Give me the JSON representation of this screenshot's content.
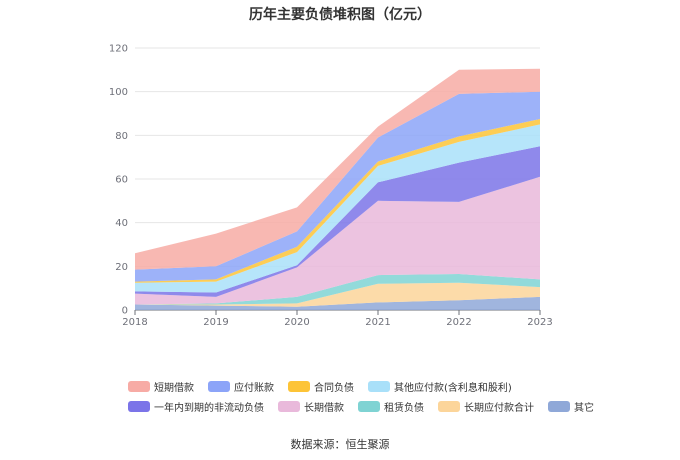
{
  "chart_data": {
    "type": "area",
    "stacked": true,
    "title": "历年主要负债堆积图（亿元）",
    "categories": [
      "2018",
      "2019",
      "2020",
      "2021",
      "2022",
      "2023"
    ],
    "ylim": [
      0,
      120
    ],
    "yticks": [
      0,
      20,
      40,
      60,
      80,
      100,
      120
    ],
    "grid": true,
    "legend_position": "bottom",
    "series": [
      {
        "name": "其它",
        "color": "#8fa8d8",
        "values": [
          2.5,
          2.0,
          1.5,
          3.5,
          4.5,
          6.0
        ]
      },
      {
        "name": "长期应付款合计",
        "color": "#fcd59a",
        "values": [
          0.0,
          0.5,
          1.5,
          8.5,
          8.0,
          4.5
        ]
      },
      {
        "name": "租赁负债",
        "color": "#7fd3d3",
        "values": [
          0.0,
          0.5,
          3.0,
          4.0,
          4.0,
          3.5
        ]
      },
      {
        "name": "长期借款",
        "color": "#e9b9db",
        "values": [
          5.0,
          3.0,
          13.5,
          34.0,
          33.0,
          47.0
        ]
      },
      {
        "name": "一年内到期的非流动负债",
        "color": "#7b74e8",
        "values": [
          1.0,
          2.0,
          1.0,
          8.5,
          18.0,
          14.0
        ]
      },
      {
        "name": "其他应付款(含利息和股利)",
        "color": "#a9e0f9",
        "values": [
          4.0,
          5.0,
          6.0,
          7.5,
          9.5,
          10.0
        ]
      },
      {
        "name": "合同负债",
        "color": "#fdc437",
        "values": [
          0.5,
          1.0,
          2.5,
          2.0,
          2.5,
          2.5
        ]
      },
      {
        "name": "应付账款",
        "color": "#8ca4f8",
        "values": [
          5.5,
          6.0,
          7.0,
          11.0,
          19.5,
          12.5
        ]
      },
      {
        "name": "短期借款",
        "color": "#f7aba5",
        "values": [
          7.5,
          15.0,
          11.0,
          5.0,
          11.0,
          10.5
        ]
      }
    ],
    "legend_order": [
      "短期借款",
      "应付账款",
      "合同负债",
      "其他应付款(含利息和股利)",
      "一年内到期的非流动负债",
      "长期借款",
      "租赁负债",
      "长期应付款合计",
      "其它"
    ]
  },
  "source": "数据来源：恒生聚源"
}
